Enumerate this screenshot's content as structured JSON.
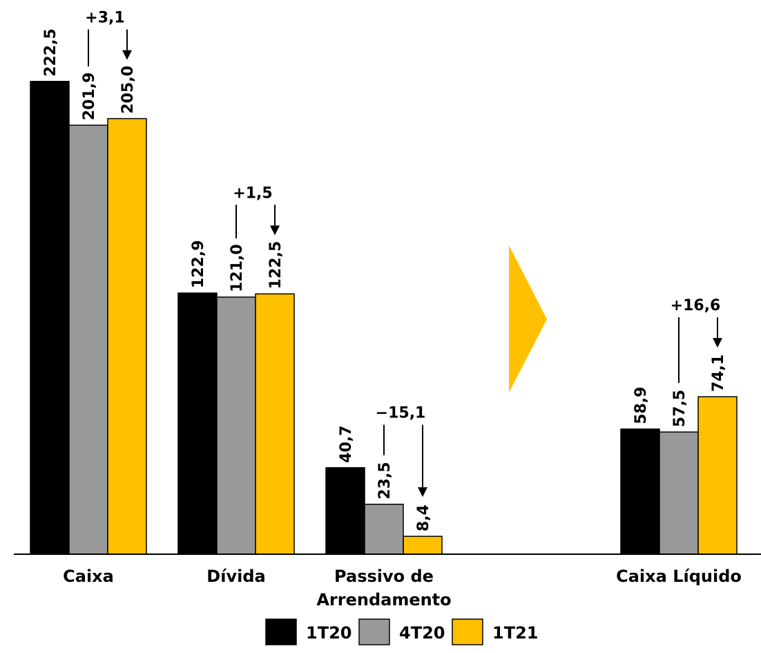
{
  "chart_data": {
    "type": "bar",
    "categories": [
      "Caixa",
      "Dívida",
      "Passivo de Arrendamento",
      "Caixa Líquido"
    ],
    "category_lines": [
      [
        "Caixa"
      ],
      [
        "Dívida"
      ],
      [
        "Passivo de",
        "Arrendamento"
      ],
      [
        "Caixa Líquido"
      ]
    ],
    "series": [
      {
        "name": "1T20",
        "color": "#000000",
        "values": [
          222.5,
          122.9,
          40.7,
          58.9
        ],
        "labels": [
          "222,5",
          "122,9",
          "40,7",
          "58,9"
        ]
      },
      {
        "name": "4T20",
        "color": "#999999",
        "values": [
          201.9,
          121.0,
          23.5,
          57.5
        ],
        "labels": [
          "201,9",
          "121,0",
          "23,5",
          "57,5"
        ]
      },
      {
        "name": "1T21",
        "color": "#FFC000",
        "values": [
          205.0,
          122.5,
          8.4,
          74.1
        ],
        "labels": [
          "205,0",
          "122,5",
          "8,4",
          "74,1"
        ]
      }
    ],
    "changes": [
      "+3,1",
      "+1,5",
      "−15,1",
      "+16,6"
    ],
    "ylim": [
      0,
      230
    ],
    "grid": false,
    "legend_position": "bottom",
    "arrow_color": "#FFC000"
  }
}
